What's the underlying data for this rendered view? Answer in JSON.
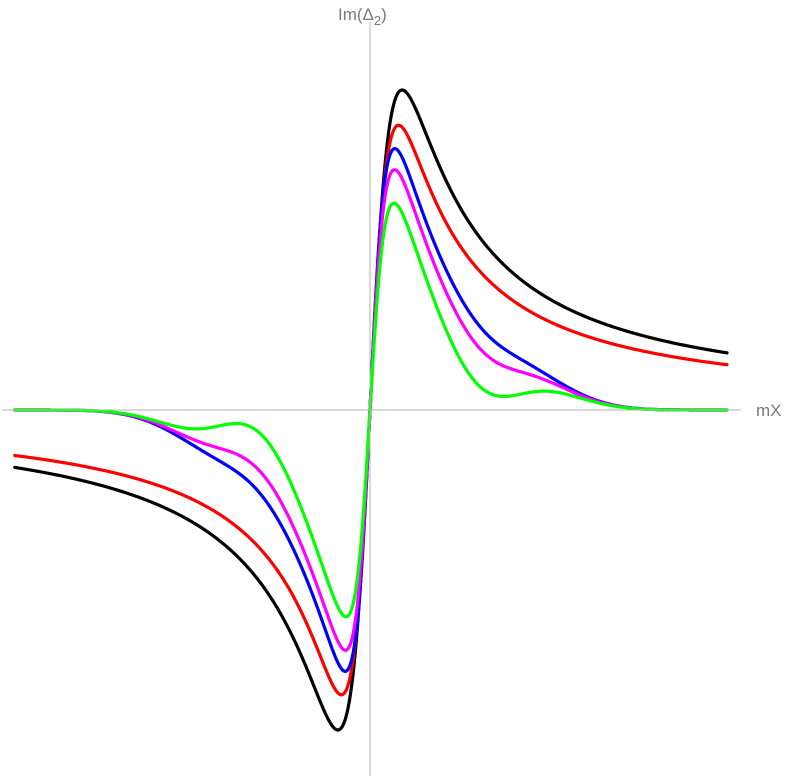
{
  "chart_data": {
    "type": "line",
    "xlabel": "mX",
    "ylabel": {
      "base": "Im(Δ",
      "sub": "2",
      "close": ")"
    },
    "xlim": [
      -1,
      1
    ],
    "ylim": [
      -1,
      1
    ],
    "grid": false,
    "legend": "none",
    "series": [
      {
        "color": "#000000",
        "amplitude": 1.0,
        "width": 0.09,
        "ripple": 0.0,
        "ripple_width": 0.1
      },
      {
        "color": "#ff0000",
        "amplitude": 0.89,
        "width": 0.08,
        "ripple": 0.0,
        "ripple_width": 0.1
      },
      {
        "color": "#0000ff",
        "amplitude": 0.82,
        "width": 0.07,
        "ripple": 0.16,
        "ripple_width": 0.2
      },
      {
        "color": "#ff00ff",
        "amplitude": 0.76,
        "width": 0.07,
        "ripple": 0.28,
        "ripple_width": 0.22
      },
      {
        "color": "#00ff00",
        "amplitude": 0.67,
        "width": 0.07,
        "ripple": 0.5,
        "ripple_width": 0.24
      }
    ]
  }
}
